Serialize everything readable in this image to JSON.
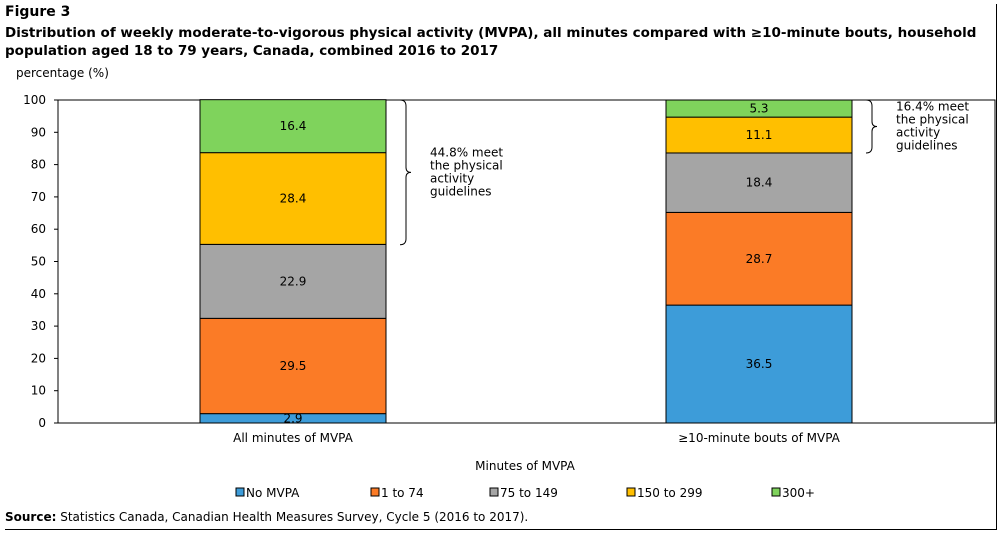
{
  "figure_label": "Figure 3",
  "title": "Distribution of weekly moderate-to-vigorous physical activity (MVPA), all minutes compared with ≥10-minute bouts, household population aged 18 to 79 years, Canada, combined 2016 to 2017",
  "ylabel": "percentage (%)",
  "source_prefix": "Source:",
  "source_text": " Statistics Canada, Canadian Health Measures Survey, Cycle 5 (2016 to 2017).",
  "chart_data": {
    "type": "bar",
    "stacked": true,
    "categories": [
      "All minutes of MVPA",
      "≥10-minute bouts of MVPA"
    ],
    "xlabel": "Minutes of MVPA",
    "ylabel": "percentage (%)",
    "ylim": [
      0,
      100
    ],
    "yticks": [
      0,
      10,
      20,
      30,
      40,
      50,
      60,
      70,
      80,
      90,
      100
    ],
    "grid": false,
    "legend_position": "bottom",
    "series": [
      {
        "name": "No MVPA",
        "color": "#3d9cd9",
        "values": [
          2.9,
          36.5
        ]
      },
      {
        "name": "1 to 74",
        "color": "#fb7b26",
        "values": [
          29.5,
          28.7
        ]
      },
      {
        "name": "75 to 149",
        "color": "#a5a5a5",
        "values": [
          22.9,
          18.4
        ]
      },
      {
        "name": "150 to 299",
        "color": "#ffbf00",
        "values": [
          28.4,
          11.1
        ]
      },
      {
        "name": "300+",
        "color": "#7fd35c",
        "values": [
          16.4,
          5.3
        ]
      }
    ],
    "annotations": [
      {
        "category": 0,
        "from": 55.2,
        "to": 100,
        "lines": [
          "44.8% meet",
          "the physical",
          "activity",
          "guidelines"
        ]
      },
      {
        "category": 1,
        "from": 83.6,
        "to": 100,
        "lines": [
          "16.4% meet",
          "the physical",
          "activity",
          "guidelines"
        ]
      }
    ]
  }
}
